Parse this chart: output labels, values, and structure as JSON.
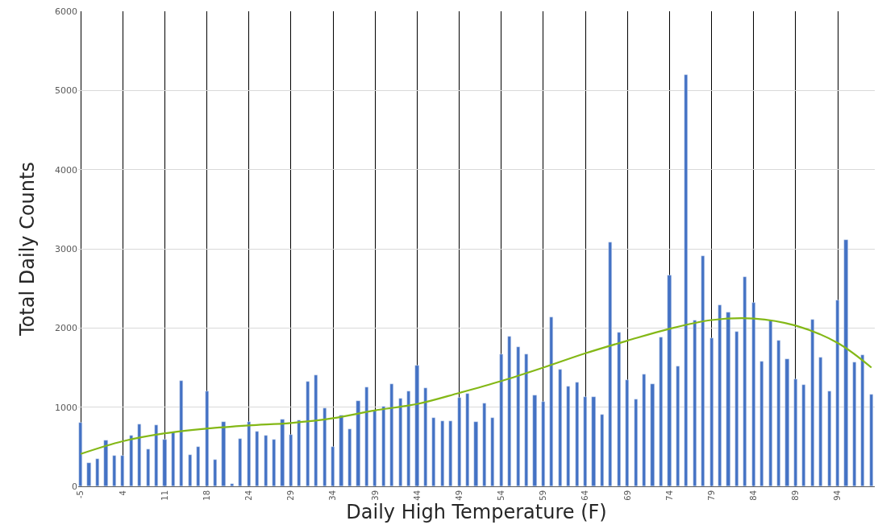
{
  "chart_data": {
    "type": "bar",
    "xlabel": "Daily High Temperature (F)",
    "ylabel": "Total Daily Counts",
    "categories": [
      "-5",
      null,
      null,
      null,
      null,
      "4",
      null,
      null,
      null,
      null,
      "11",
      null,
      null,
      null,
      null,
      "18",
      null,
      null,
      null,
      null,
      "24",
      null,
      null,
      null,
      null,
      "29",
      null,
      null,
      null,
      null,
      "34",
      null,
      null,
      null,
      null,
      "39",
      null,
      null,
      null,
      null,
      "44",
      null,
      null,
      null,
      null,
      "49",
      null,
      null,
      null,
      null,
      "54",
      null,
      null,
      null,
      null,
      "59",
      null,
      null,
      null,
      null,
      "64",
      null,
      null,
      null,
      null,
      "69",
      null,
      null,
      null,
      null,
      "74",
      null,
      null,
      null,
      null,
      "79",
      null,
      null,
      null,
      null,
      "84",
      null,
      null,
      null,
      null,
      "89",
      null,
      null,
      null,
      null,
      "94",
      null,
      null,
      null,
      null
    ],
    "series": [
      {
        "color": "#4472c4",
        "values": [
          800,
          290,
          350,
          580,
          390,
          390,
          640,
          780,
          470,
          770,
          590,
          680,
          1330,
          400,
          500,
          1200,
          340,
          810,
          30,
          600,
          810,
          690,
          640,
          590,
          840,
          650,
          830,
          1320,
          1400,
          990,
          500,
          900,
          720,
          1080,
          1250,
          960,
          1010,
          1290,
          1110,
          1200,
          1530,
          1240,
          860,
          820,
          820,
          1120,
          1170,
          810,
          1050,
          860,
          1670,
          1890,
          1760,
          1670,
          1150,
          1070,
          2140,
          1470,
          1260,
          1310,
          1130,
          1130,
          910,
          3080,
          1940,
          1340,
          1100,
          1410,
          1290,
          1880,
          2660,
          1520,
          5200,
          2100,
          2910,
          1870,
          2290,
          2200,
          1950,
          2640,
          2320,
          1580,
          2100,
          1840,
          1610,
          1350,
          1280,
          2110,
          1630,
          1200,
          2350,
          3110,
          1570,
          1660,
          1160
        ]
      },
      {
        "type": "line",
        "color": "#84b817",
        "values": [
          410,
          null,
          null,
          null,
          null,
          570,
          null,
          null,
          null,
          null,
          670,
          null,
          null,
          null,
          null,
          730,
          null,
          null,
          null,
          null,
          770,
          null,
          null,
          null,
          null,
          800,
          null,
          null,
          null,
          null,
          860,
          null,
          null,
          null,
          null,
          960,
          null,
          null,
          null,
          null,
          1040,
          null,
          null,
          null,
          null,
          1180,
          null,
          null,
          null,
          null,
          1330,
          null,
          null,
          null,
          null,
          1500,
          null,
          null,
          null,
          null,
          1680,
          null,
          null,
          null,
          null,
          1840,
          null,
          null,
          null,
          null,
          1990,
          null,
          null,
          null,
          null,
          2100,
          null,
          null,
          null,
          null,
          2120,
          null,
          null,
          null,
          null,
          2030,
          null,
          null,
          null,
          null,
          1810,
          null,
          null,
          null,
          1500
        ]
      }
    ],
    "ylim": [
      0,
      6000
    ],
    "yticks": [
      0,
      1000,
      2000,
      3000,
      4000,
      5000,
      6000
    ],
    "grid": true
  }
}
